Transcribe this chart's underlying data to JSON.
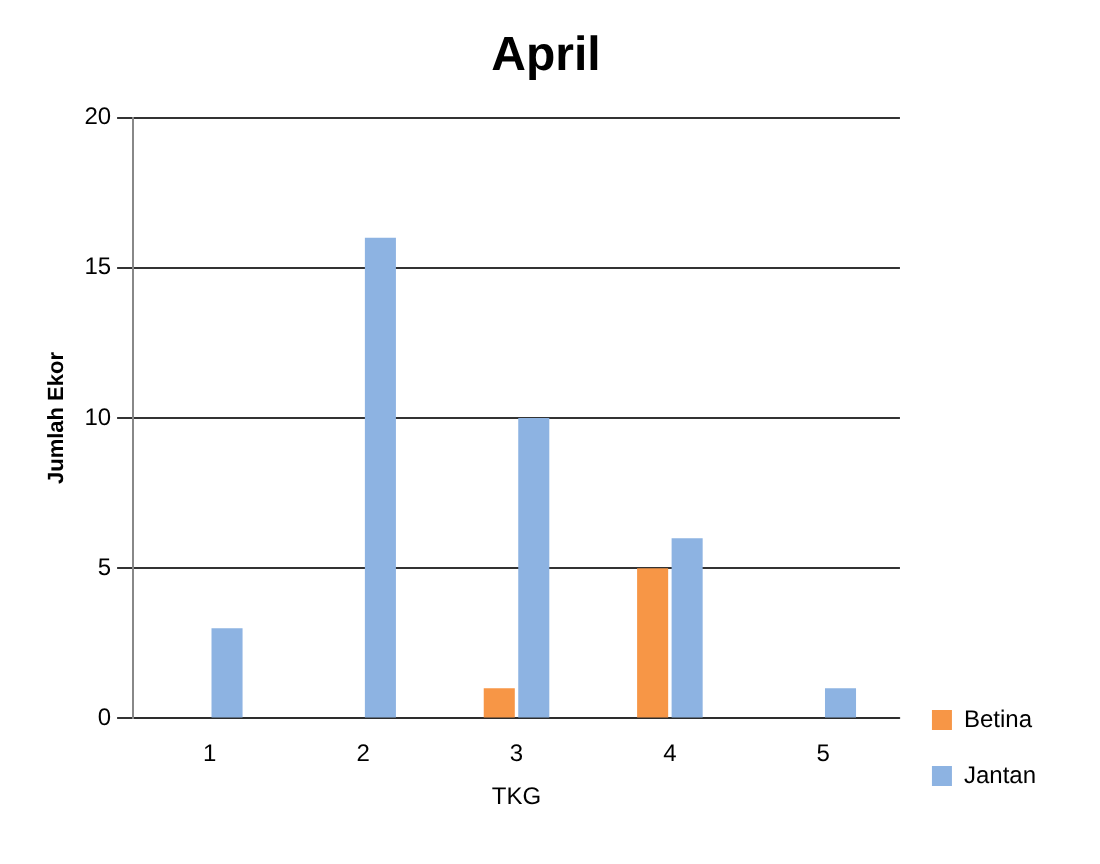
{
  "chart_data": {
    "type": "bar",
    "title": "April",
    "xlabel": "TKG",
    "ylabel": "Jumlah Ekor",
    "categories": [
      "1",
      "2",
      "3",
      "4",
      "5"
    ],
    "series": [
      {
        "name": "Betina",
        "color": "#f79646",
        "values": [
          0,
          0,
          1,
          5,
          0
        ]
      },
      {
        "name": "Jantan",
        "color": "#8db3e2",
        "values": [
          3,
          16,
          10,
          6,
          1
        ]
      }
    ],
    "ylim": [
      0,
      20
    ],
    "yticks": [
      0,
      5,
      10,
      15,
      20
    ],
    "grid": "y",
    "legend": "bottom right"
  }
}
